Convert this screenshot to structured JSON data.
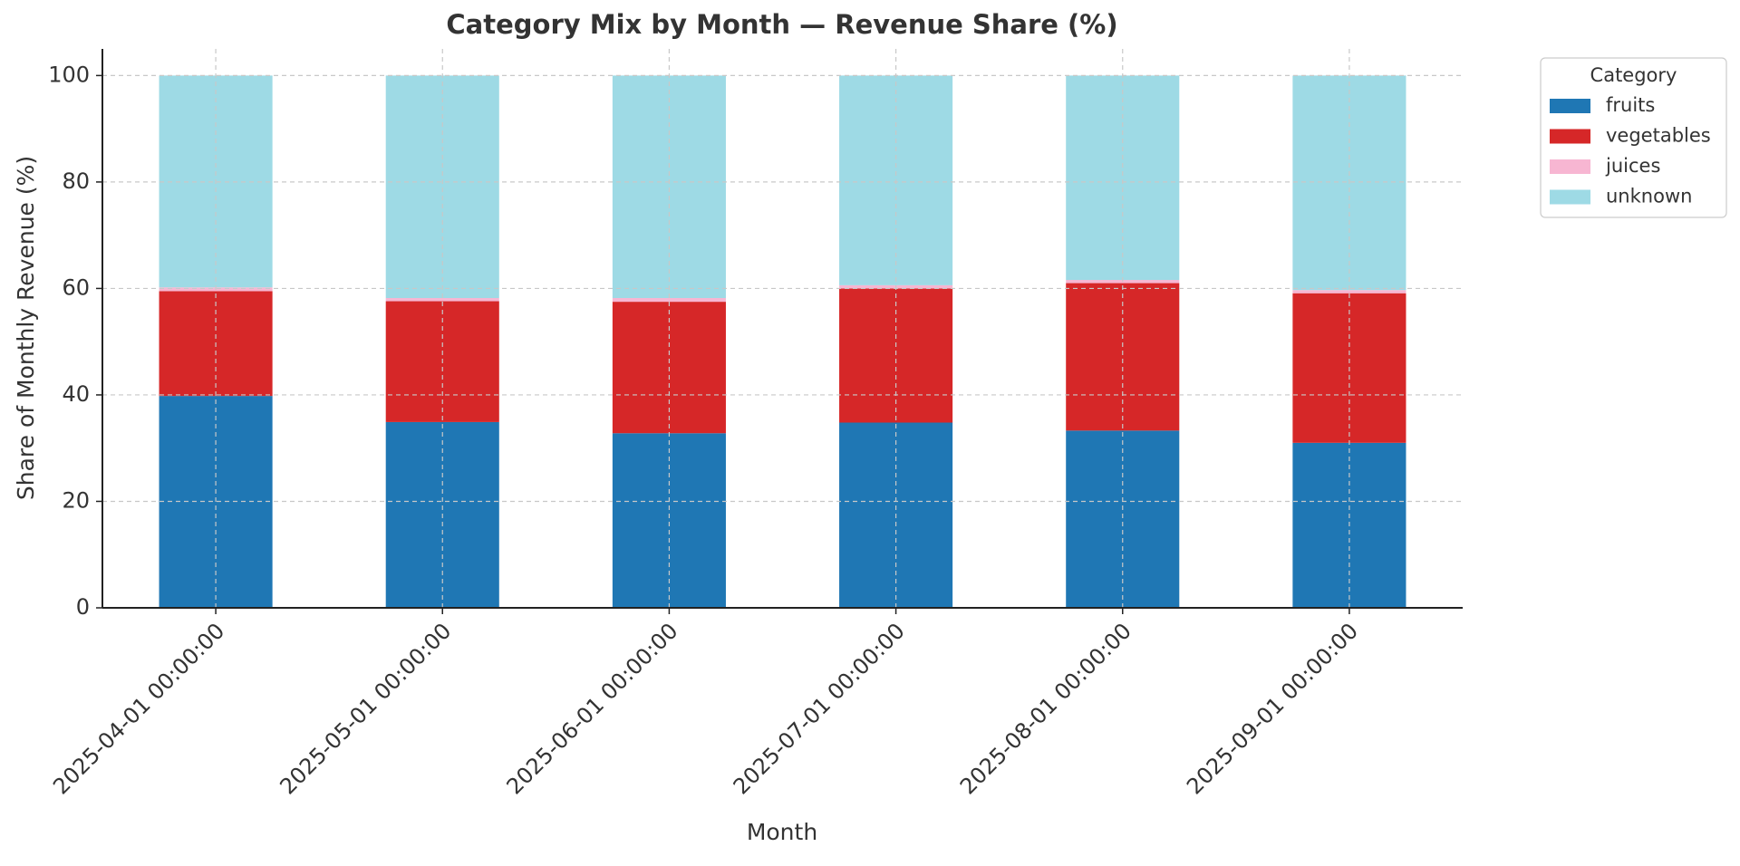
{
  "chart_data": {
    "type": "stacked_bar",
    "title": "Category Mix by Month — Revenue Share (%)",
    "x_label": "Month",
    "y_label": "Share of Monthly Revenue (%)",
    "categories": [
      "2025-04-01 00:00:00",
      "2025-05-01 00:00:00",
      "2025-06-01 00:00:00",
      "2025-07-01 00:00:00",
      "2025-08-01 00:00:00",
      "2025-09-01 00:00:00"
    ],
    "series": [
      {
        "name": "fruits",
        "color": "#1f77b4",
        "values": [
          39.8,
          34.9,
          32.8,
          34.8,
          33.3,
          31.0
        ]
      },
      {
        "name": "vegetables",
        "color": "#d62728",
        "values": [
          19.7,
          22.7,
          24.7,
          25.2,
          27.7,
          28.1
        ]
      },
      {
        "name": "juices",
        "color": "#f7b6d2",
        "values": [
          0.7,
          0.6,
          0.7,
          0.6,
          0.6,
          0.6
        ]
      },
      {
        "name": "unknown",
        "color": "#9edae5",
        "values": [
          39.8,
          41.8,
          41.8,
          39.4,
          38.4,
          40.3
        ]
      }
    ],
    "ylim": [
      0,
      105
    ],
    "yticks": [
      0,
      20,
      40,
      60,
      80,
      100
    ],
    "grid": true,
    "legend_title": "Category",
    "legend_position": "upper-right-outside"
  }
}
